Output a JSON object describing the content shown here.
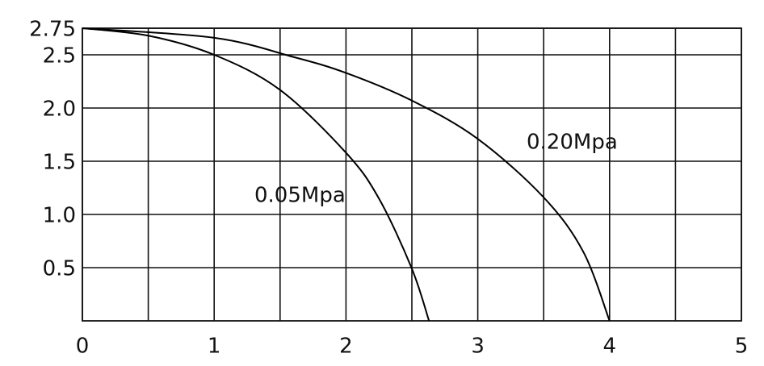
{
  "chart_data": {
    "type": "line",
    "series": [
      {
        "name": "0.05Mpa",
        "color": "#000000",
        "x": [
          0,
          0.5,
          1,
          1.5,
          2,
          2.25,
          2.5,
          2.63
        ],
        "values": [
          2.75,
          2.68,
          2.5,
          2.17,
          1.58,
          1.15,
          0.49,
          0
        ]
      },
      {
        "name": "0.20Mpa",
        "color": "#000000",
        "x": [
          0,
          1,
          1.6,
          2,
          2.5,
          3,
          3.5,
          3.8,
          4
        ],
        "values": [
          2.75,
          2.66,
          2.48,
          2.33,
          2.07,
          1.71,
          1.16,
          0.65,
          0
        ]
      }
    ],
    "xlim": [
      0,
      5
    ],
    "ylim": [
      0,
      2.75
    ],
    "xticks": [
      0,
      1,
      2,
      3,
      4,
      5
    ],
    "xminor": [
      0.5,
      1.5,
      2.5,
      3.5,
      4.5
    ],
    "yticks": [
      0.5,
      {
        "value": 1,
        "label": "1.0"
      },
      1.5,
      {
        "value": 2,
        "label": "2.0"
      },
      2.5,
      2.75
    ],
    "grid": true
  }
}
